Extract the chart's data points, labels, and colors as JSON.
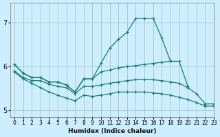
{
  "xlabel": "Humidex (Indice chaleur)",
  "bg_color": "#cceeff",
  "grid_color": "#aacccc",
  "line_color": "#1a7a6a",
  "xlim": [
    -0.5,
    23
  ],
  "ylim": [
    4.85,
    7.45
  ],
  "yticks": [
    5,
    6,
    7
  ],
  "xticks": [
    0,
    1,
    2,
    3,
    4,
    5,
    6,
    7,
    8,
    9,
    10,
    11,
    12,
    13,
    14,
    15,
    16,
    17,
    18,
    19,
    20,
    21,
    22,
    23
  ],
  "series": [
    {
      "x": [
        0,
        1,
        2,
        3,
        4,
        5,
        6,
        7,
        8,
        9,
        10,
        11,
        12,
        13,
        14,
        15,
        16,
        17,
        18,
        19,
        20
      ],
      "y": [
        6.05,
        5.85,
        5.75,
        5.75,
        5.65,
        5.65,
        5.58,
        5.42,
        5.72,
        5.72,
        6.08,
        6.42,
        6.62,
        6.78,
        7.1,
        7.1,
        7.1,
        6.65,
        6.12,
        6.12,
        5.55
      ]
    },
    {
      "x": [
        0,
        1,
        2,
        3,
        4,
        5,
        6,
        7,
        8,
        9,
        10,
        11,
        12,
        13,
        14,
        15,
        16,
        17,
        18
      ],
      "y": [
        6.05,
        5.85,
        5.75,
        5.75,
        5.65,
        5.65,
        5.58,
        5.42,
        5.72,
        5.72,
        5.88,
        5.92,
        5.97,
        6.0,
        6.02,
        6.05,
        6.07,
        6.1,
        6.12
      ]
    },
    {
      "x": [
        0,
        1,
        2,
        3,
        4,
        5,
        6,
        7,
        8,
        9,
        10,
        11,
        12,
        13,
        14,
        15,
        16,
        17,
        18,
        19,
        20,
        21,
        22,
        23
      ],
      "y": [
        5.9,
        5.75,
        5.68,
        5.68,
        5.6,
        5.55,
        5.52,
        5.38,
        5.55,
        5.55,
        5.58,
        5.62,
        5.65,
        5.68,
        5.7,
        5.7,
        5.7,
        5.68,
        5.65,
        5.62,
        5.52,
        5.38,
        5.15,
        5.15
      ]
    },
    {
      "x": [
        0,
        1,
        2,
        3,
        4,
        5,
        6,
        7,
        8,
        9,
        10,
        11,
        12,
        13,
        14,
        15,
        16,
        17,
        18,
        19,
        20,
        21,
        22,
        23
      ],
      "y": [
        5.88,
        5.72,
        5.62,
        5.52,
        5.42,
        5.35,
        5.28,
        5.22,
        5.35,
        5.32,
        5.35,
        5.38,
        5.42,
        5.42,
        5.42,
        5.42,
        5.4,
        5.38,
        5.35,
        5.3,
        5.25,
        5.18,
        5.1,
        5.1
      ]
    }
  ]
}
